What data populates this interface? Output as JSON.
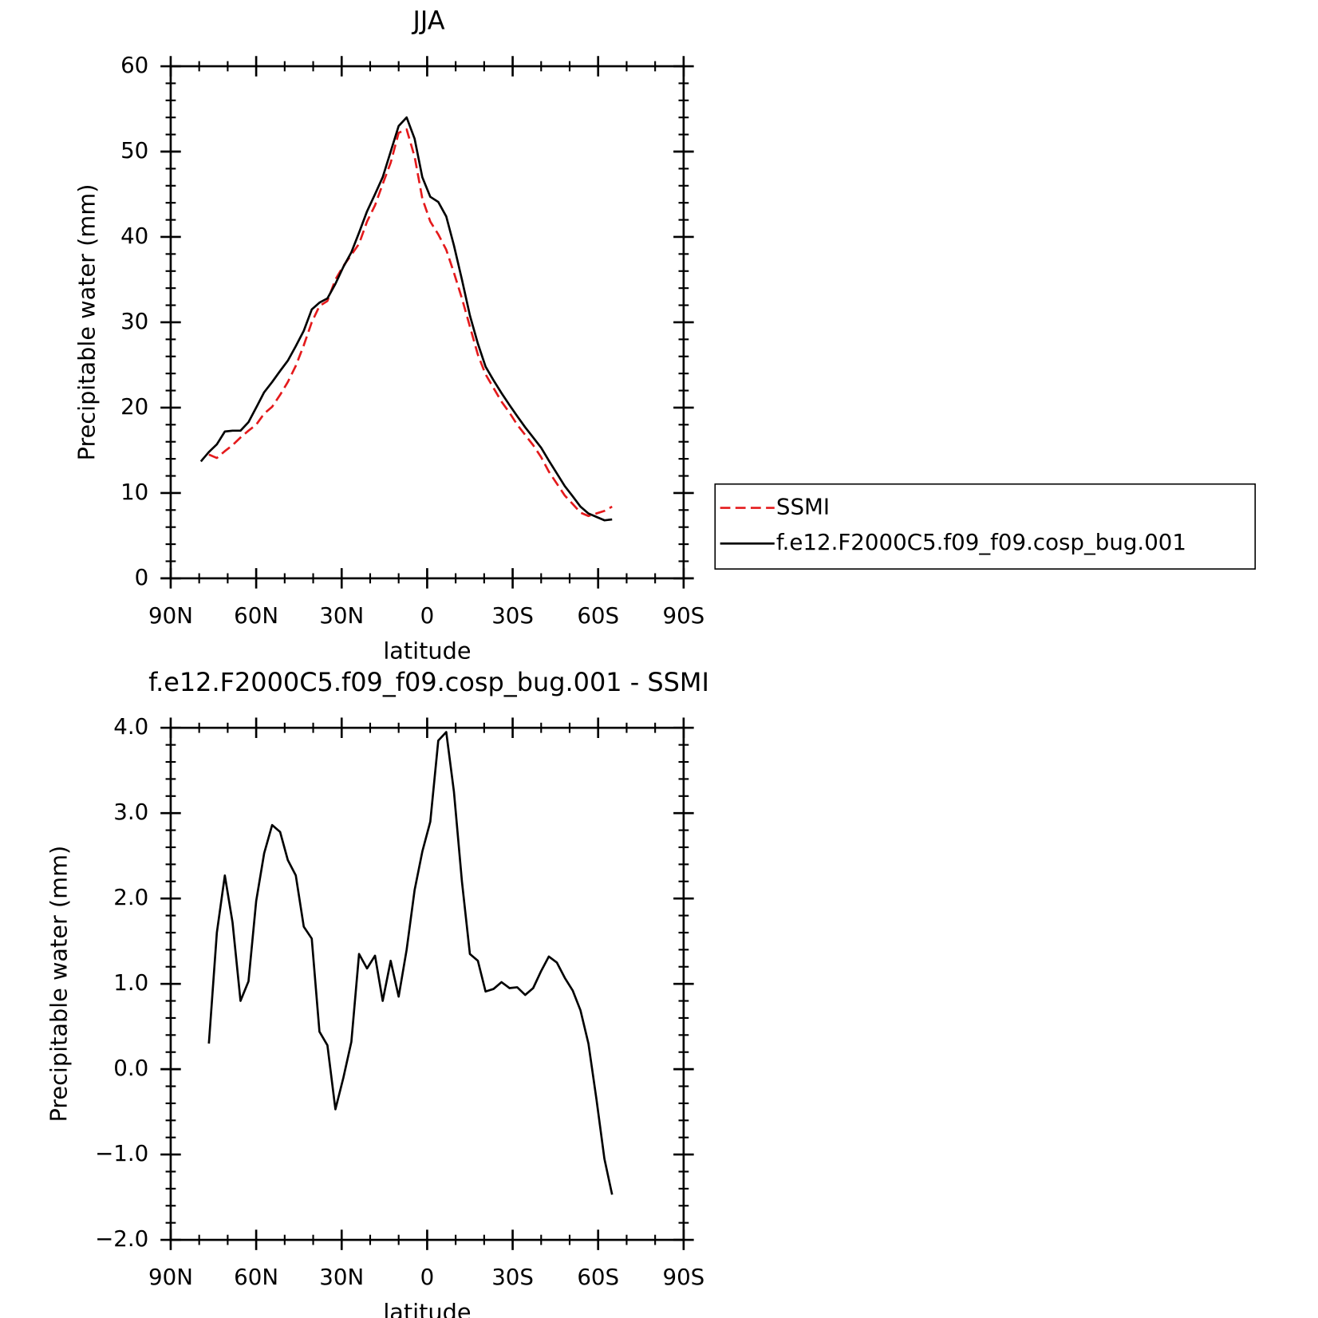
{
  "chart_data": [
    {
      "type": "line",
      "title": "JJA",
      "xlabel": "latitude",
      "ylabel": "Precipitable water (mm)",
      "x": [
        79.4,
        76.6,
        73.8,
        71.0,
        68.3,
        65.5,
        62.7,
        60.0,
        57.2,
        54.4,
        51.6,
        48.9,
        46.1,
        43.3,
        40.5,
        37.8,
        35.0,
        32.2,
        29.4,
        26.6,
        23.9,
        21.1,
        18.3,
        15.6,
        12.8,
        10.0,
        7.2,
        4.4,
        1.7,
        -1.1,
        -3.9,
        -6.7,
        -9.4,
        -12.2,
        -15.0,
        -17.8,
        -20.5,
        -23.3,
        -26.1,
        -28.9,
        -31.6,
        -34.4,
        -37.2,
        -40.0,
        -42.7,
        -45.5,
        -48.3,
        -51.1,
        -53.8,
        -56.6,
        -59.4,
        -62.2,
        -64.9
      ],
      "series": [
        {
          "name": "SSMI",
          "color": "#e41a1c",
          "linestyle": "dashed",
          "values": [
            null,
            14.5,
            14.1,
            14.9,
            15.6,
            16.5,
            17.3,
            18.0,
            19.3,
            20.1,
            21.5,
            23.0,
            24.9,
            27.3,
            30.0,
            31.9,
            32.5,
            35.0,
            36.6,
            37.9,
            39.2,
            41.8,
            43.7,
            46.2,
            48.7,
            52.2,
            52.6,
            49.4,
            44.5,
            41.8,
            40.3,
            38.5,
            35.8,
            32.8,
            29.5,
            26.2,
            23.9,
            22.3,
            20.7,
            19.4,
            18.0,
            16.8,
            15.6,
            14.2,
            12.5,
            11.1,
            9.7,
            8.7,
            7.7,
            7.3,
            7.6,
            7.9,
            8.4
          ]
        },
        {
          "name": "f.e12.F2000C5.f09_f09.cosp_bug.001",
          "color": "#000000",
          "linestyle": "solid",
          "values": [
            13.7,
            14.8,
            15.7,
            17.2,
            17.3,
            17.3,
            18.3,
            20.0,
            21.8,
            23.0,
            24.3,
            25.5,
            27.2,
            29.0,
            31.5,
            32.3,
            32.8,
            34.5,
            36.5,
            38.2,
            40.5,
            43.0,
            45.0,
            47.0,
            50.0,
            53.0,
            54.0,
            51.5,
            47.0,
            44.7,
            44.1,
            42.4,
            39.0,
            35.0,
            30.8,
            27.5,
            24.8,
            23.2,
            21.7,
            20.3,
            19.0,
            17.7,
            16.5,
            15.3,
            13.8,
            12.3,
            10.8,
            9.6,
            8.4,
            7.6,
            7.2,
            6.8,
            6.9
          ]
        }
      ],
      "xlim": [
        90,
        -90
      ],
      "xticks": [
        {
          "value": 90,
          "label": "90N"
        },
        {
          "value": 60,
          "label": "60N"
        },
        {
          "value": 30,
          "label": "30N"
        },
        0,
        {
          "value": -30,
          "label": "30S"
        },
        {
          "value": -60,
          "label": "60S"
        },
        {
          "value": -90,
          "label": "90S"
        }
      ],
      "ylim": [
        0,
        60
      ],
      "yticks": [
        0,
        10,
        20,
        30,
        40,
        50,
        60
      ],
      "legend": "right"
    },
    {
      "type": "line",
      "title": "f.e12.F2000C5.f09_f09.cosp_bug.001 - SSMI",
      "xlabel": "latitude",
      "ylabel": "Precipitable water (mm)",
      "x": [
        76.6,
        73.8,
        71.0,
        68.3,
        65.5,
        62.7,
        60.0,
        57.2,
        54.4,
        51.6,
        48.9,
        46.1,
        43.3,
        40.5,
        37.8,
        35.0,
        32.2,
        29.4,
        26.6,
        23.9,
        21.1,
        18.3,
        15.6,
        12.8,
        10.0,
        7.2,
        4.4,
        1.7,
        -1.1,
        -3.9,
        -6.7,
        -9.4,
        -12.2,
        -15.0,
        -17.8,
        -20.5,
        -23.3,
        -26.1,
        -28.9,
        -31.6,
        -34.4,
        -37.2,
        -40.0,
        -42.7,
        -45.5,
        -48.3,
        -51.1,
        -53.8,
        -56.6,
        -59.4,
        -62.2,
        -64.9
      ],
      "series": [
        {
          "color": "#000000",
          "linestyle": "solid",
          "values": [
            0.3,
            1.6,
            2.27,
            1.72,
            0.8,
            1.03,
            1.97,
            2.53,
            2.86,
            2.78,
            2.45,
            2.27,
            1.67,
            1.53,
            0.44,
            0.28,
            -0.47,
            -0.1,
            0.32,
            1.35,
            1.18,
            1.33,
            0.8,
            1.27,
            0.85,
            1.4,
            2.1,
            2.55,
            2.9,
            3.85,
            3.95,
            3.25,
            2.2,
            1.35,
            1.27,
            0.91,
            0.94,
            1.02,
            0.95,
            0.96,
            0.87,
            0.95,
            1.15,
            1.32,
            1.25,
            1.07,
            0.92,
            0.69,
            0.3,
            -0.35,
            -1.05,
            -1.47
          ]
        }
      ],
      "xlim": [
        90,
        -90
      ],
      "xticks": [
        {
          "value": 90,
          "label": "90N"
        },
        {
          "value": 60,
          "label": "60N"
        },
        {
          "value": 30,
          "label": "30N"
        },
        0,
        {
          "value": -30,
          "label": "30S"
        },
        {
          "value": -60,
          "label": "60S"
        },
        {
          "value": -90,
          "label": "90S"
        }
      ],
      "ylim": [
        -2,
        4
      ],
      "yticks": [
        {
          "value": -2,
          "label": "−2.0"
        },
        {
          "value": -1,
          "label": "−1.0"
        },
        {
          "value": 0,
          "label": "0.0"
        },
        {
          "value": 1,
          "label": "1.0"
        },
        {
          "value": 2,
          "label": "2.0"
        },
        {
          "value": 3,
          "label": "3.0"
        },
        {
          "value": 4,
          "label": "4.0"
        }
      ]
    }
  ]
}
